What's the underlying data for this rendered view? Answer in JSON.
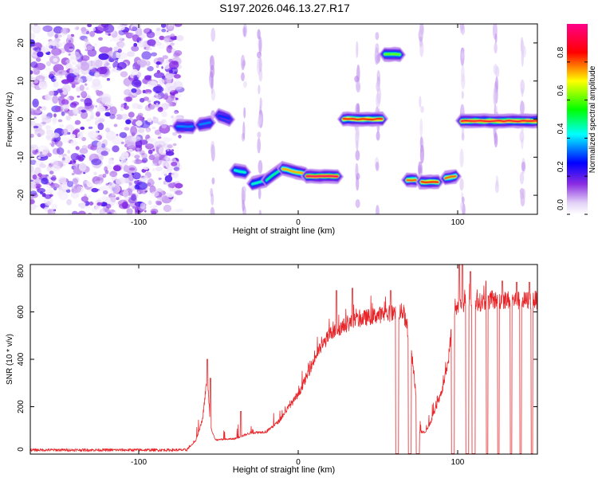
{
  "title": "S197.2026.046.13.27.R17",
  "chart_data": [
    {
      "type": "heatmap",
      "name": "spectrogram",
      "xlabel": "Height of straight line (km)",
      "ylabel": "Frequency (Hz)",
      "xlim": [
        -168,
        150
      ],
      "ylim": [
        -25,
        25
      ],
      "xticks": [
        -100,
        0,
        100
      ],
      "xtick_labels": [
        "-100",
        "0",
        "100"
      ],
      "yticks": [
        -20,
        -10,
        0,
        10,
        20
      ],
      "ytick_labels": [
        "-20",
        "-10",
        "0",
        "10",
        "20"
      ],
      "noise_region_x": [
        -168,
        -78
      ],
      "tracks": [
        {
          "x": [
            -76,
            -66
          ],
          "y": [
            -2,
            -2
          ],
          "amp": 0.35
        },
        {
          "x": [
            -62,
            -55
          ],
          "y": [
            -1.5,
            -1
          ],
          "amp": 0.35
        },
        {
          "x": [
            -50,
            -43
          ],
          "y": [
            1,
            0
          ],
          "amp": 0.3
        },
        {
          "x": [
            -40,
            -33
          ],
          "y": [
            -13.5,
            -14
          ],
          "amp": 0.45
        },
        {
          "x": [
            -29,
            -20
          ],
          "y": [
            -17,
            -16
          ],
          "amp": 0.45
        },
        {
          "x": [
            -20,
            -10
          ],
          "y": [
            -16,
            -13
          ],
          "amp": 0.5
        },
        {
          "x": [
            -10,
            5
          ],
          "y": [
            -13,
            -14.5
          ],
          "amp": 0.75
        },
        {
          "x": [
            5,
            25
          ],
          "y": [
            -15,
            -15
          ],
          "amp": 0.95
        },
        {
          "x": [
            28,
            53
          ],
          "y": [
            0,
            0
          ],
          "amp": 0.85
        },
        {
          "x": [
            54,
            64
          ],
          "y": [
            17,
            17
          ],
          "amp": 0.6
        },
        {
          "x": [
            68,
            74
          ],
          "y": [
            -16,
            -16
          ],
          "amp": 0.8
        },
        {
          "x": [
            77,
            88
          ],
          "y": [
            -16.5,
            -16.5
          ],
          "amp": 0.85
        },
        {
          "x": [
            92,
            99
          ],
          "y": [
            -15.5,
            -15
          ],
          "amp": 0.8
        },
        {
          "x": [
            102,
            150
          ],
          "y": [
            -0.5,
            -0.5
          ],
          "amp": 0.9
        }
      ],
      "faint_streaks_x": [
        -54,
        -34,
        -24,
        37,
        50,
        77,
        103,
        124,
        141
      ],
      "colorbar": {
        "label": "Normalized spectral amplitude",
        "range": [
          0,
          1
        ],
        "ticks": [
          0.0,
          0.2,
          0.4,
          0.6,
          0.8
        ],
        "tick_labels": [
          "0.0",
          "0.2",
          "0.4",
          "0.6",
          "0.8"
        ],
        "colormap": "rainbow (white-violet-blue-cyan-green-yellow-red-magenta)"
      }
    },
    {
      "type": "line",
      "name": "snr",
      "xlabel": "Height of straight line (km)",
      "ylabel": "SNR (10 * v/v)",
      "xlim": [
        -168,
        150
      ],
      "ylim": [
        0,
        800
      ],
      "xticks": [
        -100,
        0,
        100
      ],
      "xtick_labels": [
        "-100",
        "0",
        "100"
      ],
      "yticks": [
        0,
        200,
        400,
        600,
        800
      ],
      "ytick_labels": [
        "0",
        "200",
        "400",
        "600",
        "800"
      ],
      "color": "#e8262a",
      "envelope": [
        [
          -168,
          15
        ],
        [
          -70,
          15
        ],
        [
          -64,
          60
        ],
        [
          -60,
          150
        ],
        [
          -57,
          330
        ],
        [
          -55,
          120
        ],
        [
          -52,
          60
        ],
        [
          -40,
          65
        ],
        [
          -30,
          90
        ],
        [
          -20,
          95
        ],
        [
          -12,
          140
        ],
        [
          -6,
          200
        ],
        [
          0,
          250
        ],
        [
          6,
          340
        ],
        [
          12,
          430
        ],
        [
          20,
          510
        ],
        [
          30,
          550
        ],
        [
          40,
          575
        ],
        [
          50,
          590
        ],
        [
          60,
          600
        ],
        [
          66,
          605
        ],
        [
          70,
          470
        ],
        [
          72,
          380
        ],
        [
          76,
          95
        ],
        [
          80,
          95
        ],
        [
          84,
          150
        ],
        [
          86,
          190
        ],
        [
          90,
          260
        ],
        [
          94,
          390
        ],
        [
          96,
          520
        ],
        [
          98,
          610
        ],
        [
          103,
          640
        ],
        [
          110,
          640
        ],
        [
          120,
          650
        ],
        [
          130,
          655
        ],
        [
          140,
          650
        ],
        [
          150,
          655
        ]
      ],
      "spikes": [
        [
          -57,
          400
        ],
        [
          -55,
          320
        ],
        [
          -36,
          180
        ],
        [
          24,
          690
        ],
        [
          34,
          700
        ],
        [
          58,
          690
        ],
        [
          70,
          680
        ],
        [
          101,
          800
        ],
        [
          103,
          800
        ],
        [
          108,
          770
        ],
        [
          118,
          730
        ],
        [
          128,
          730
        ],
        [
          137,
          725
        ],
        [
          145,
          725
        ]
      ],
      "dropouts": [
        [
          61,
          63
        ],
        [
          69,
          71
        ],
        [
          74,
          76
        ],
        [
          96,
          98
        ],
        [
          105,
          107
        ],
        [
          109,
          111
        ],
        [
          118,
          119
        ],
        [
          125,
          126
        ],
        [
          133,
          134
        ],
        [
          139,
          140
        ],
        [
          146,
          147
        ]
      ]
    }
  ]
}
